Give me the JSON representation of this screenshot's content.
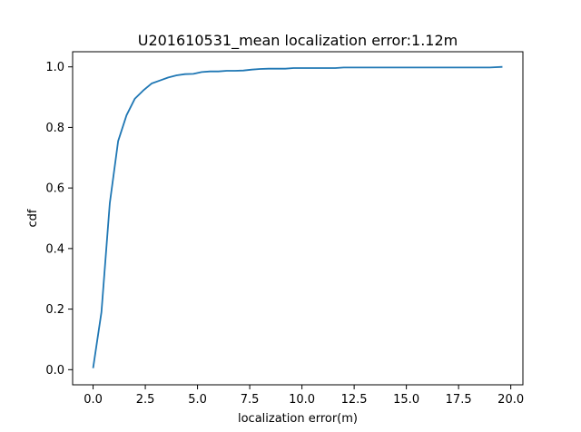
{
  "chart_data": {
    "type": "line",
    "title": "U201610531_mean localization error:1.12m",
    "xlabel": "localization error(m)",
    "ylabel": "cdf",
    "xlim": [
      -0.98,
      20.58
    ],
    "ylim": [
      -0.05,
      1.05
    ],
    "xticks": [
      0.0,
      2.5,
      5.0,
      7.5,
      10.0,
      12.5,
      15.0,
      17.5,
      20.0
    ],
    "xtick_labels": [
      "0.0",
      "2.5",
      "5.0",
      "7.5",
      "10.0",
      "12.5",
      "15.0",
      "17.5",
      "20.0"
    ],
    "yticks": [
      0.0,
      0.2,
      0.4,
      0.6,
      0.8,
      1.0
    ],
    "ytick_labels": [
      "0.0",
      "0.2",
      "0.4",
      "0.6",
      "0.8",
      "1.0"
    ],
    "grid": false,
    "series": [
      {
        "name": "cdf",
        "color": "#1f77b4",
        "x": [
          0.0,
          0.4,
          0.8,
          1.2,
          1.6,
          2.0,
          2.4,
          2.8,
          3.2,
          3.6,
          4.0,
          4.4,
          4.8,
          5.2,
          5.6,
          6.0,
          6.4,
          6.8,
          7.2,
          7.6,
          8.0,
          8.4,
          8.8,
          9.2,
          9.6,
          10.0,
          11.0,
          11.6,
          12.0,
          13.0,
          14.0,
          15.0,
          16.0,
          17.0,
          18.0,
          19.0,
          19.6
        ],
        "y": [
          0.005,
          0.19,
          0.55,
          0.755,
          0.84,
          0.895,
          0.922,
          0.945,
          0.955,
          0.965,
          0.972,
          0.976,
          0.977,
          0.983,
          0.985,
          0.985,
          0.987,
          0.987,
          0.988,
          0.991,
          0.993,
          0.994,
          0.994,
          0.994,
          0.996,
          0.996,
          0.996,
          0.996,
          0.998,
          0.998,
          0.998,
          0.998,
          0.998,
          0.998,
          0.998,
          0.998,
          1.0
        ]
      }
    ]
  }
}
